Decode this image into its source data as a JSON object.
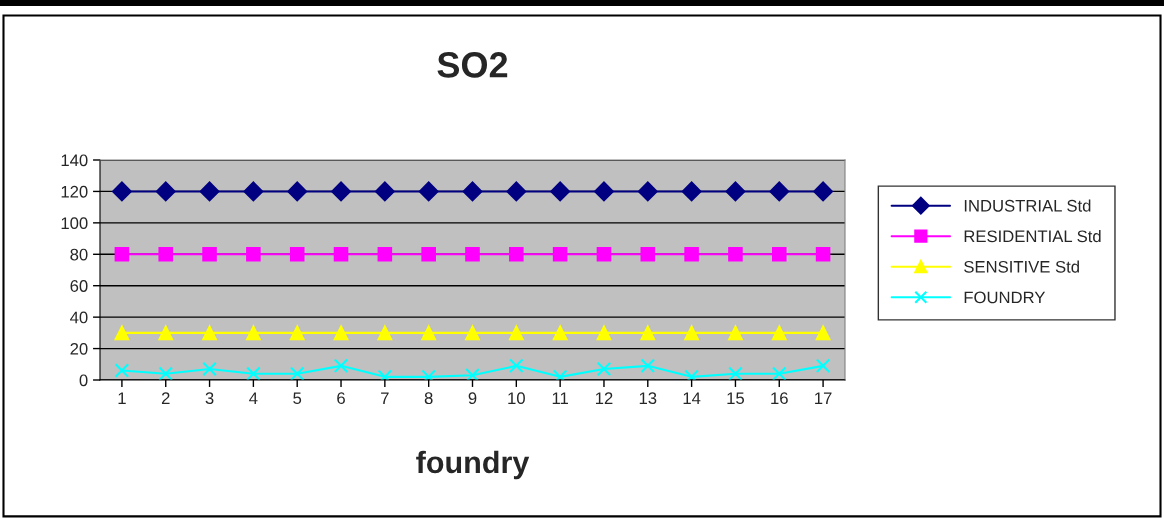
{
  "chart_data": {
    "type": "line",
    "title": "SO2",
    "xlabel": "foundry",
    "categories": [
      "1",
      "2",
      "3",
      "4",
      "5",
      "6",
      "7",
      "8",
      "9",
      "10",
      "11",
      "12",
      "13",
      "14",
      "15",
      "16",
      "17"
    ],
    "series": [
      {
        "name": "INDUSTRIAL Std",
        "color": "#000080",
        "marker": "diamond",
        "values": [
          120,
          120,
          120,
          120,
          120,
          120,
          120,
          120,
          120,
          120,
          120,
          120,
          120,
          120,
          120,
          120,
          120
        ]
      },
      {
        "name": "RESIDENTIAL Std",
        "color": "#ff00ff",
        "marker": "square",
        "values": [
          80,
          80,
          80,
          80,
          80,
          80,
          80,
          80,
          80,
          80,
          80,
          80,
          80,
          80,
          80,
          80,
          80
        ]
      },
      {
        "name": "SENSITIVE Std",
        "color": "#ffff00",
        "marker": "triangle",
        "values": [
          30,
          30,
          30,
          30,
          30,
          30,
          30,
          30,
          30,
          30,
          30,
          30,
          30,
          30,
          30,
          30,
          30
        ]
      },
      {
        "name": "FOUNDRY",
        "color": "#00ffff",
        "marker": "cross",
        "values": [
          6,
          4,
          7,
          4,
          4,
          9,
          2,
          2,
          3,
          9,
          2,
          7,
          9,
          2,
          4,
          4,
          9
        ]
      }
    ],
    "ylim": [
      0,
      140
    ],
    "yticks": [
      0,
      20,
      40,
      60,
      80,
      100,
      120,
      140
    ],
    "grid": "y",
    "legend": "right"
  }
}
